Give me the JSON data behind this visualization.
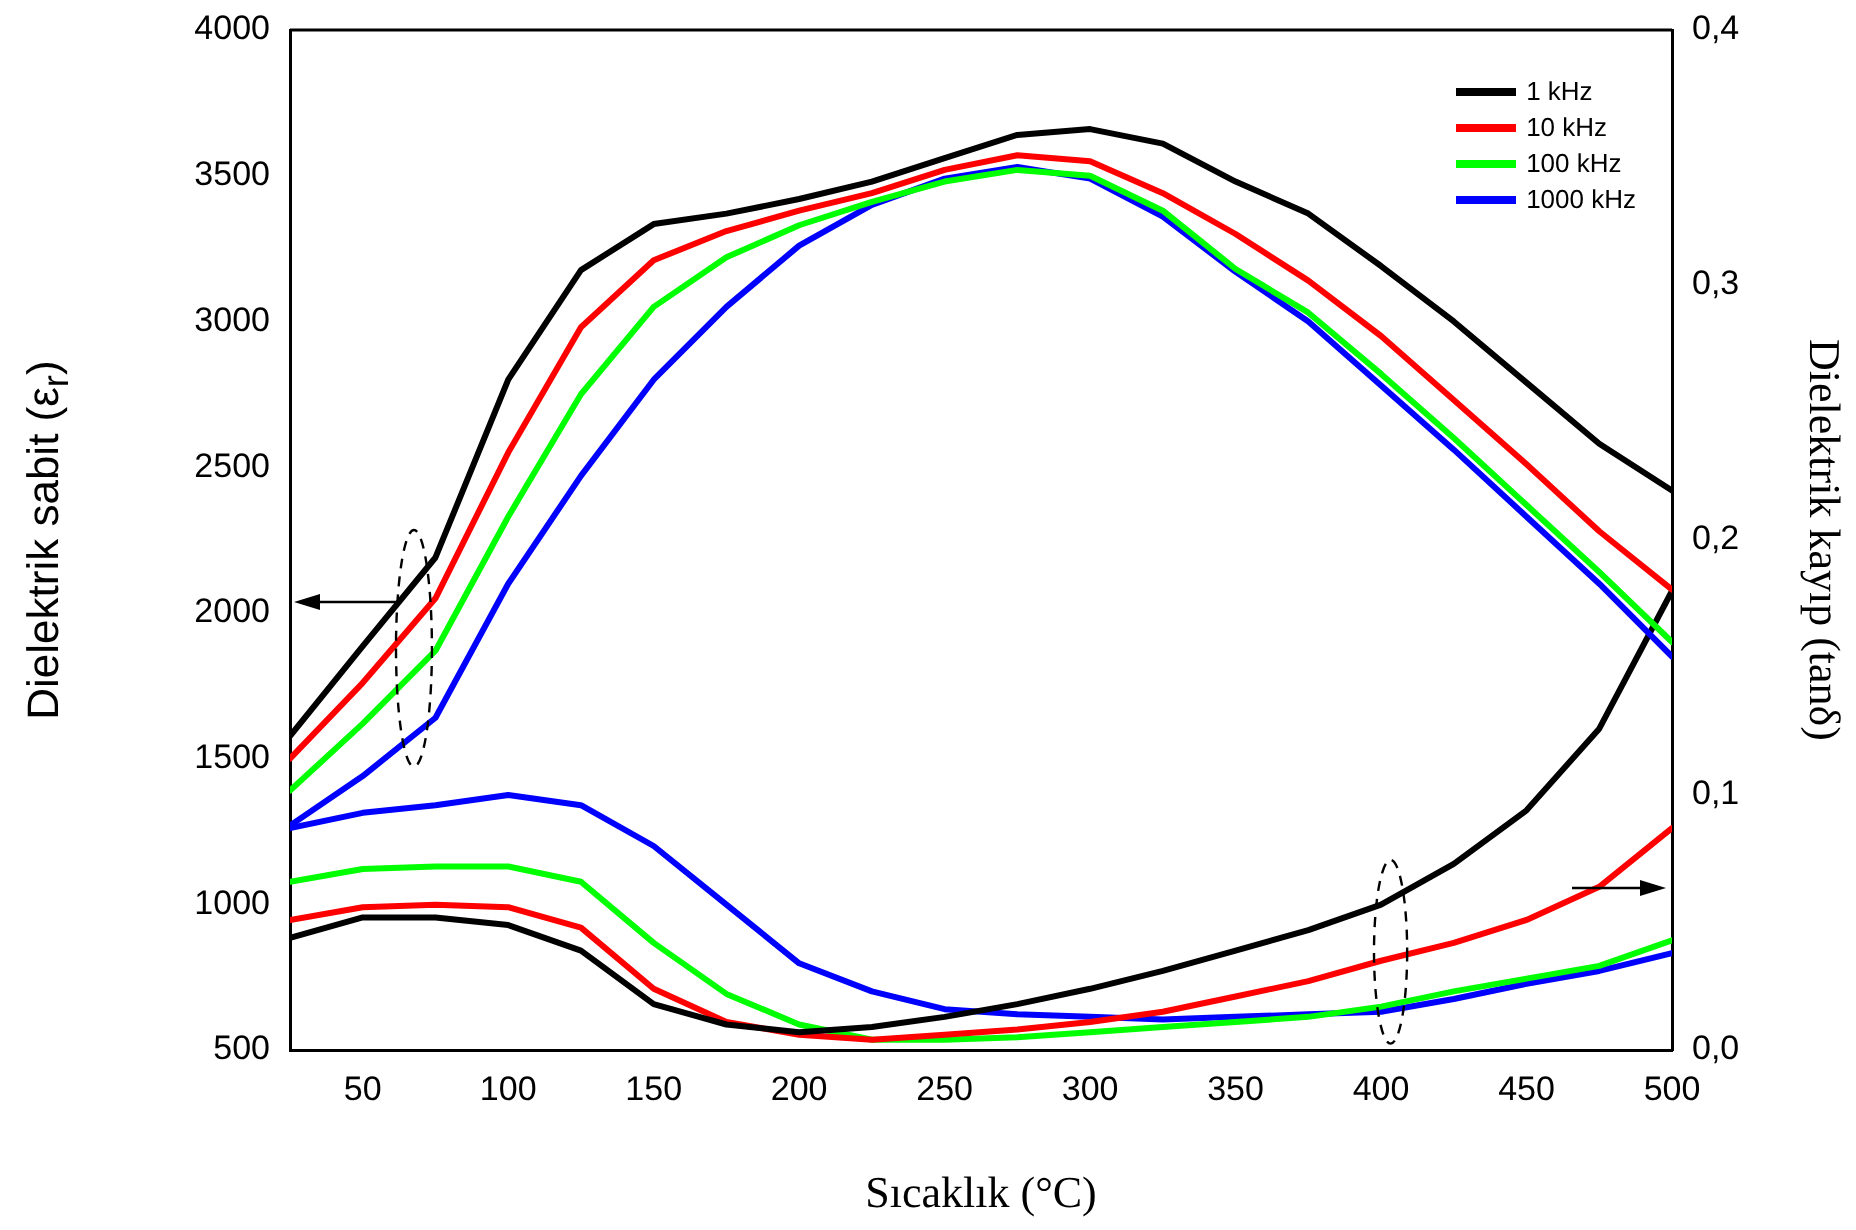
{
  "chart_data": {
    "type": "line",
    "xlabel": "Sıcaklık (°C)",
    "ylabel": "Dielektrik sabit (ε$_{r}$)",
    "y2label": "Dielektrik kayıp (tanδ)",
    "x": [
      25,
      50,
      75,
      100,
      125,
      150,
      175,
      200,
      225,
      250,
      275,
      300,
      325,
      350,
      375,
      400,
      425,
      450,
      475,
      500
    ],
    "xlim": [
      25,
      500
    ],
    "xticks": [
      50,
      100,
      150,
      200,
      250,
      300,
      350,
      400,
      450,
      500
    ],
    "ylim": [
      500,
      4000
    ],
    "yticks": [
      500,
      1000,
      1500,
      2000,
      2500,
      3000,
      3500,
      4000
    ],
    "y2lim": [
      0,
      0.4
    ],
    "y2ticks": [
      {
        "value": 0,
        "label": "0,0"
      },
      {
        "value": 0.1,
        "label": "0,1"
      },
      {
        "value": 0.2,
        "label": "0,2"
      },
      {
        "value": 0.3,
        "label": "0,3"
      },
      {
        "value": 0.4,
        "label": "0,4"
      }
    ],
    "legend": "top right",
    "grid": false,
    "marker": "none",
    "line_style": "solid",
    "series": [
      {
        "name": "1 kHz",
        "color": "#000000",
        "values": [
          1577,
          1886,
          2190,
          2800,
          3176,
          3334,
          3370,
          3420,
          3480,
          3560,
          3640,
          3660,
          3610,
          3480,
          3370,
          3190,
          3000,
          2790,
          2580,
          2420
        ]
      },
      {
        "name": "10 kHz",
        "color": "#ff0000",
        "values": [
          1500,
          1760,
          2050,
          2550,
          2980,
          3210,
          3310,
          3380,
          3440,
          3520,
          3570,
          3550,
          3440,
          3300,
          3140,
          2950,
          2730,
          2510,
          2280,
          2080
        ]
      },
      {
        "name": "100 kHz",
        "color": "#00ff00",
        "values": [
          1390,
          1620,
          1870,
          2330,
          2750,
          3050,
          3220,
          3330,
          3410,
          3480,
          3520,
          3500,
          3380,
          3180,
          3030,
          2820,
          2600,
          2370,
          2140,
          1900
        ]
      },
      {
        "name": "1000 kHz",
        "color": "#0000ff",
        "values": [
          1270,
          1440,
          1640,
          2100,
          2470,
          2800,
          3050,
          3260,
          3400,
          3490,
          3530,
          3490,
          3360,
          3170,
          3000,
          2780,
          2560,
          2330,
          2100,
          1850
        ]
      },
      {
        "color": "#000000",
        "axis": "y2",
        "values": [
          0.044,
          0.052,
          0.052,
          0.049,
          0.039,
          0.018,
          0.01,
          0.007,
          0.009,
          0.013,
          0.018,
          0.024,
          0.031,
          0.039,
          0.047,
          0.057,
          0.073,
          0.094,
          0.126,
          0.18
        ]
      },
      {
        "color": "#ff0000",
        "axis": "y2",
        "values": [
          0.051,
          0.056,
          0.057,
          0.056,
          0.048,
          0.024,
          0.011,
          0.006,
          0.004,
          0.006,
          0.008,
          0.011,
          0.015,
          0.021,
          0.027,
          0.035,
          0.042,
          0.051,
          0.064,
          0.087
        ]
      },
      {
        "color": "#00ff00",
        "axis": "y2",
        "values": [
          0.066,
          0.071,
          0.072,
          0.072,
          0.066,
          0.042,
          0.022,
          0.01,
          0.004,
          0.004,
          0.005,
          0.007,
          0.009,
          0.011,
          0.013,
          0.017,
          0.023,
          0.028,
          0.033,
          0.043
        ]
      },
      {
        "color": "#0000ff",
        "axis": "y2",
        "values": [
          0.087,
          0.093,
          0.096,
          0.1,
          0.096,
          0.08,
          0.057,
          0.034,
          0.023,
          0.016,
          0.014,
          0.013,
          0.012,
          0.013,
          0.014,
          0.015,
          0.02,
          0.026,
          0.031,
          0.038
        ]
      }
    ]
  }
}
